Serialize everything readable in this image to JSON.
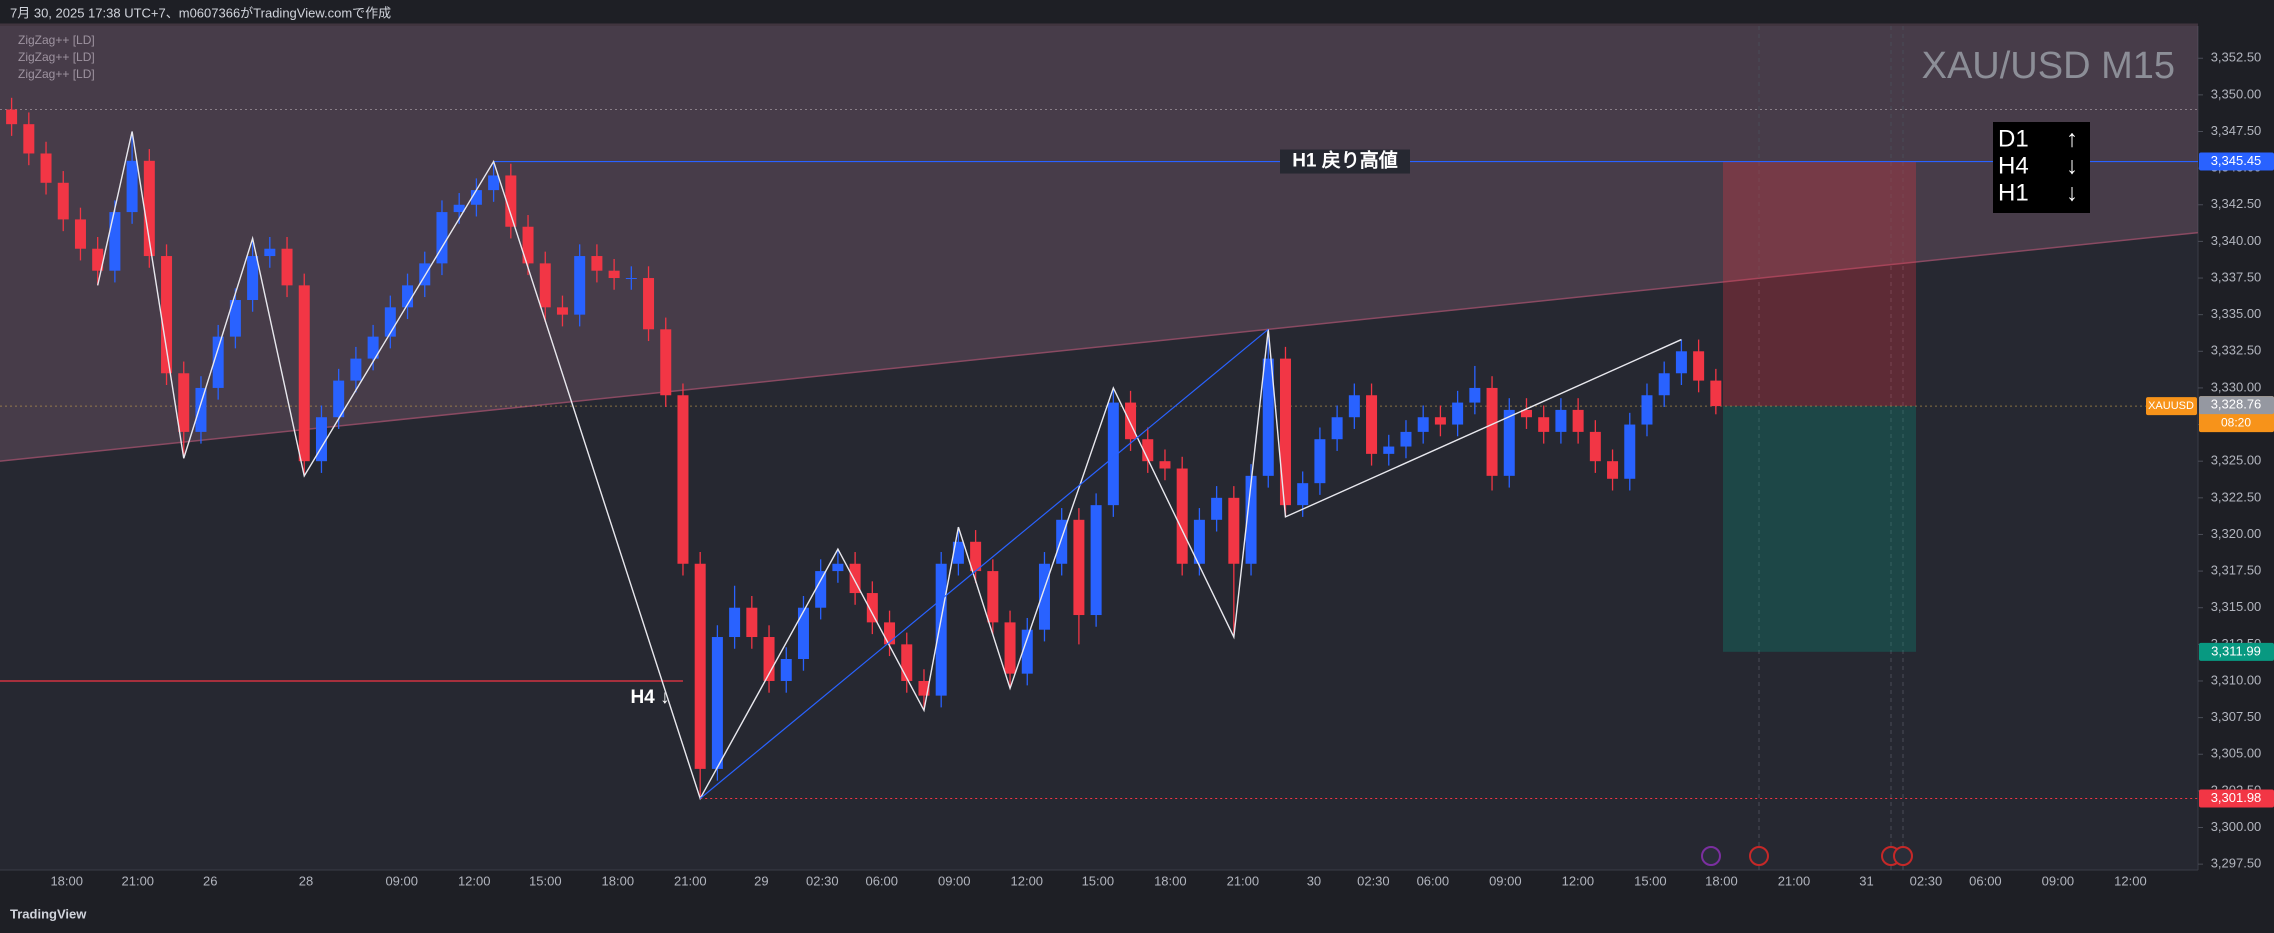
{
  "chart_data": {
    "type": "candlestick",
    "header": "7月 30, 2025 17:38 UTC+7、m0607366がTradingView.comで作成",
    "indicators": [
      "ZigZag++ [LD]",
      "ZigZag++ [LD]",
      "ZigZag++ [LD]"
    ],
    "title": "XAU/USD M15",
    "brand": "TradingView",
    "up_color": "#2962ff",
    "down_color": "#f23645",
    "open": [
      3349,
      3348,
      3346,
      3344,
      3341.5,
      3339.5,
      3338,
      3342,
      3345.5,
      3339,
      3331,
      3327,
      3330,
      3333.5,
      3336,
      3339,
      3339.5,
      3337,
      3325,
      3328,
      3330.5,
      3332,
      3333.5,
      3335.5,
      3337,
      3338.5,
      3342,
      3342.5,
      3343.5,
      3344.5,
      3341,
      3338.5,
      3335.5,
      3335,
      3339,
      3338,
      3337.5,
      3337.5,
      3334,
      3329.5,
      3318,
      3304,
      3313,
      3315,
      3313,
      3310,
      3311.5,
      3315,
      3317.5,
      3318,
      3316,
      3314,
      3312.5,
      3310,
      3309,
      3318,
      3319.5,
      3317.5,
      3314,
      3310.5,
      3313.5,
      3318,
      3321,
      3314.5,
      3322,
      3329,
      3326.5,
      3325,
      3324.5,
      3318,
      3321,
      3322.5,
      3318,
      3324,
      3332,
      3322,
      3323.5,
      3326.5,
      3328,
      3329.5,
      3325.5,
      3326,
      3327,
      3328,
      3327.5,
      3329,
      3330,
      3324,
      3328.5,
      3328,
      3327,
      3328.5,
      3327,
      3325,
      3323.8,
      3327.5,
      3329.5,
      3331,
      3332.5,
      3330.5
    ],
    "high": [
      3349.8,
      3348.8,
      3346.8,
      3344.8,
      3342.3,
      3340.3,
      3342.8,
      3347.5,
      3346.3,
      3339.8,
      3331.8,
      3330.8,
      3334.3,
      3336.8,
      3340.2,
      3340.3,
      3340.3,
      3337.8,
      3328.8,
      3331.3,
      3332.8,
      3334.3,
      3336.3,
      3337.8,
      3339.3,
      3342.8,
      3343.3,
      3344.3,
      3345.45,
      3345.3,
      3341.8,
      3339.3,
      3336.3,
      3339.8,
      3339.8,
      3338.8,
      3338.3,
      3338.3,
      3334.8,
      3330.3,
      3318.8,
      3313.8,
      3316.5,
      3315.8,
      3313.8,
      3312.3,
      3315.8,
      3318.3,
      3319,
      3318.8,
      3316.8,
      3314.8,
      3313.3,
      3310.8,
      3318.8,
      3320.5,
      3320.3,
      3318.3,
      3314.8,
      3314.3,
      3318.8,
      3321.8,
      3321.8,
      3322.8,
      3330,
      3329.8,
      3327.3,
      3325.8,
      3325.3,
      3321.8,
      3323.3,
      3323.3,
      3324.8,
      3334,
      3332.8,
      3324.3,
      3327.3,
      3328.8,
      3330.3,
      3330.3,
      3326.8,
      3327.8,
      3328.8,
      3328.8,
      3329.8,
      3331.5,
      3330.8,
      3329.3,
      3329.3,
      3328.8,
      3329.3,
      3329.3,
      3327.8,
      3325.8,
      3328.3,
      3330.3,
      3331.8,
      3333.3,
      3333.3,
      3331.3
    ],
    "low": [
      3347.2,
      3345.2,
      3343.2,
      3340.7,
      3338.7,
      3337,
      3337.2,
      3341.2,
      3338.2,
      3330.2,
      3325.2,
      3326.2,
      3329.2,
      3332.7,
      3335.2,
      3338.2,
      3336.2,
      3324,
      3324.2,
      3327.2,
      3329.7,
      3331.2,
      3332.7,
      3334.7,
      3336.2,
      3337.7,
      3341.2,
      3341.7,
      3342.7,
      3340.2,
      3337.7,
      3334.5,
      3334.2,
      3334.2,
      3337.2,
      3336.7,
      3336.7,
      3333.2,
      3328.7,
      3317.2,
      3301.98,
      3303.2,
      3312.2,
      3312.2,
      3309.2,
      3309.2,
      3310.7,
      3314.2,
      3316.7,
      3315.2,
      3313.2,
      3311.7,
      3309.2,
      3308,
      3308.2,
      3317.2,
      3316.7,
      3313.2,
      3309.5,
      3309.7,
      3312.7,
      3317.2,
      3312.5,
      3313.7,
      3321.2,
      3325.7,
      3324.2,
      3323.7,
      3317.2,
      3317.2,
      3320.2,
      3313,
      3317.2,
      3323.2,
      3321.2,
      3321.2,
      3322.7,
      3325.7,
      3327.2,
      3324.7,
      3324.7,
      3325.2,
      3326.2,
      3326.7,
      3326.7,
      3328.2,
      3323,
      3323.2,
      3327.2,
      3326.2,
      3326.2,
      3326.2,
      3324.2,
      3323,
      3323,
      3326.7,
      3328.7,
      3330.2,
      3329.7,
      3328.2
    ],
    "close": [
      3348,
      3346,
      3344,
      3341.5,
      3339.5,
      3338,
      3342,
      3345.5,
      3339,
      3331,
      3327,
      3330,
      3333.5,
      3336,
      3339,
      3339.5,
      3337,
      3325,
      3328,
      3330.5,
      3332,
      3333.5,
      3335.5,
      3337,
      3338.5,
      3342,
      3342.5,
      3343.5,
      3344.5,
      3341,
      3338.5,
      3335.5,
      3335,
      3339,
      3338,
      3337.5,
      3337.5,
      3334,
      3329.5,
      3318,
      3304,
      3313,
      3315,
      3313,
      3310,
      3311.5,
      3315,
      3317.5,
      3318,
      3316,
      3314,
      3312.5,
      3310,
      3309,
      3318,
      3319.5,
      3317.5,
      3314,
      3310.5,
      3313.5,
      3318,
      3321,
      3314.5,
      3322,
      3329,
      3326.5,
      3325,
      3324.5,
      3318,
      3321,
      3322.5,
      3318,
      3324,
      3332,
      3322,
      3323.5,
      3326.5,
      3328,
      3329.5,
      3325.5,
      3326,
      3327,
      3328,
      3327.5,
      3329,
      3330,
      3324,
      3328.5,
      3328,
      3327,
      3328.5,
      3327,
      3325,
      3323.8,
      3327.5,
      3329.5,
      3331,
      3332.5,
      3330.5,
      3328.76
    ],
    "time_labels": [
      "18:00",
      "21:00",
      "26",
      "28",
      "09:00",
      "12:00",
      "15:00",
      "18:00",
      "21:00",
      "29",
      "02:30",
      "06:00",
      "09:00",
      "12:00",
      "15:00",
      "18:00",
      "21:00",
      "30",
      "02:30",
      "06:00",
      "09:00",
      "12:00",
      "15:00",
      "18:00",
      "21:00",
      "31",
      "02:30",
      "06:00",
      "09:00",
      "12:00"
    ],
    "ylim": [
      3297.1,
      3354.7
    ],
    "yticks": [
      {
        "value": 3297.5,
        "label": "3,297.50"
      },
      {
        "value": 3300,
        "label": "3,300.00"
      },
      {
        "value": 3302.5,
        "label": "3,302.50"
      },
      {
        "value": 3305,
        "label": "3,305.00"
      },
      {
        "value": 3307.5,
        "label": "3,307.50"
      },
      {
        "value": 3310,
        "label": "3,310.00"
      },
      {
        "value": 3312.5,
        "label": "3,312.50"
      },
      {
        "value": 3315,
        "label": "3,315.00"
      },
      {
        "value": 3317.5,
        "label": "3,317.50"
      },
      {
        "value": 3320,
        "label": "3,320.00"
      },
      {
        "value": 3322.5,
        "label": "3,322.50"
      },
      {
        "value": 3325,
        "label": "3,325.00"
      },
      {
        "value": 3327.5,
        "label": "3,327.50"
      },
      {
        "value": 3330,
        "label": "3,330.00"
      },
      {
        "value": 3332.5,
        "label": "3,332.50"
      },
      {
        "value": 3335,
        "label": "3,335.00"
      },
      {
        "value": 3337.5,
        "label": "3,337.50"
      },
      {
        "value": 3340,
        "label": "3,340.00"
      },
      {
        "value": 3342.5,
        "label": "3,342.50"
      },
      {
        "value": 3345,
        "label": "3,345.00"
      },
      {
        "value": 3347.5,
        "label": "3,347.50"
      },
      {
        "value": 3350,
        "label": "3,350.00"
      },
      {
        "value": 3352.5,
        "label": "3,352.50"
      }
    ],
    "zone": {
      "top": 3349,
      "slope_start": 3325,
      "slope_end": 3340.6
    },
    "h1_pullback_high": {
      "label": "H1 戻り高値",
      "value": 3345.45,
      "tag": "3,345.45"
    },
    "h4_level": {
      "label": "H4 ↓",
      "value": 3310
    },
    "low_level": {
      "value": 3301.98,
      "tag": "3,301.98"
    },
    "last_price": {
      "symbol": "XAUUSD",
      "value": 3328.76,
      "tag": "3,328.76",
      "countdown": "08:20"
    },
    "target": {
      "value": 3311.99,
      "tag": "3,311.99"
    },
    "trend_box": [
      {
        "label": "D1",
        "arrow": "↑"
      },
      {
        "label": "H4",
        "arrow": "↓"
      },
      {
        "label": "H1",
        "arrow": "↓"
      }
    ]
  }
}
